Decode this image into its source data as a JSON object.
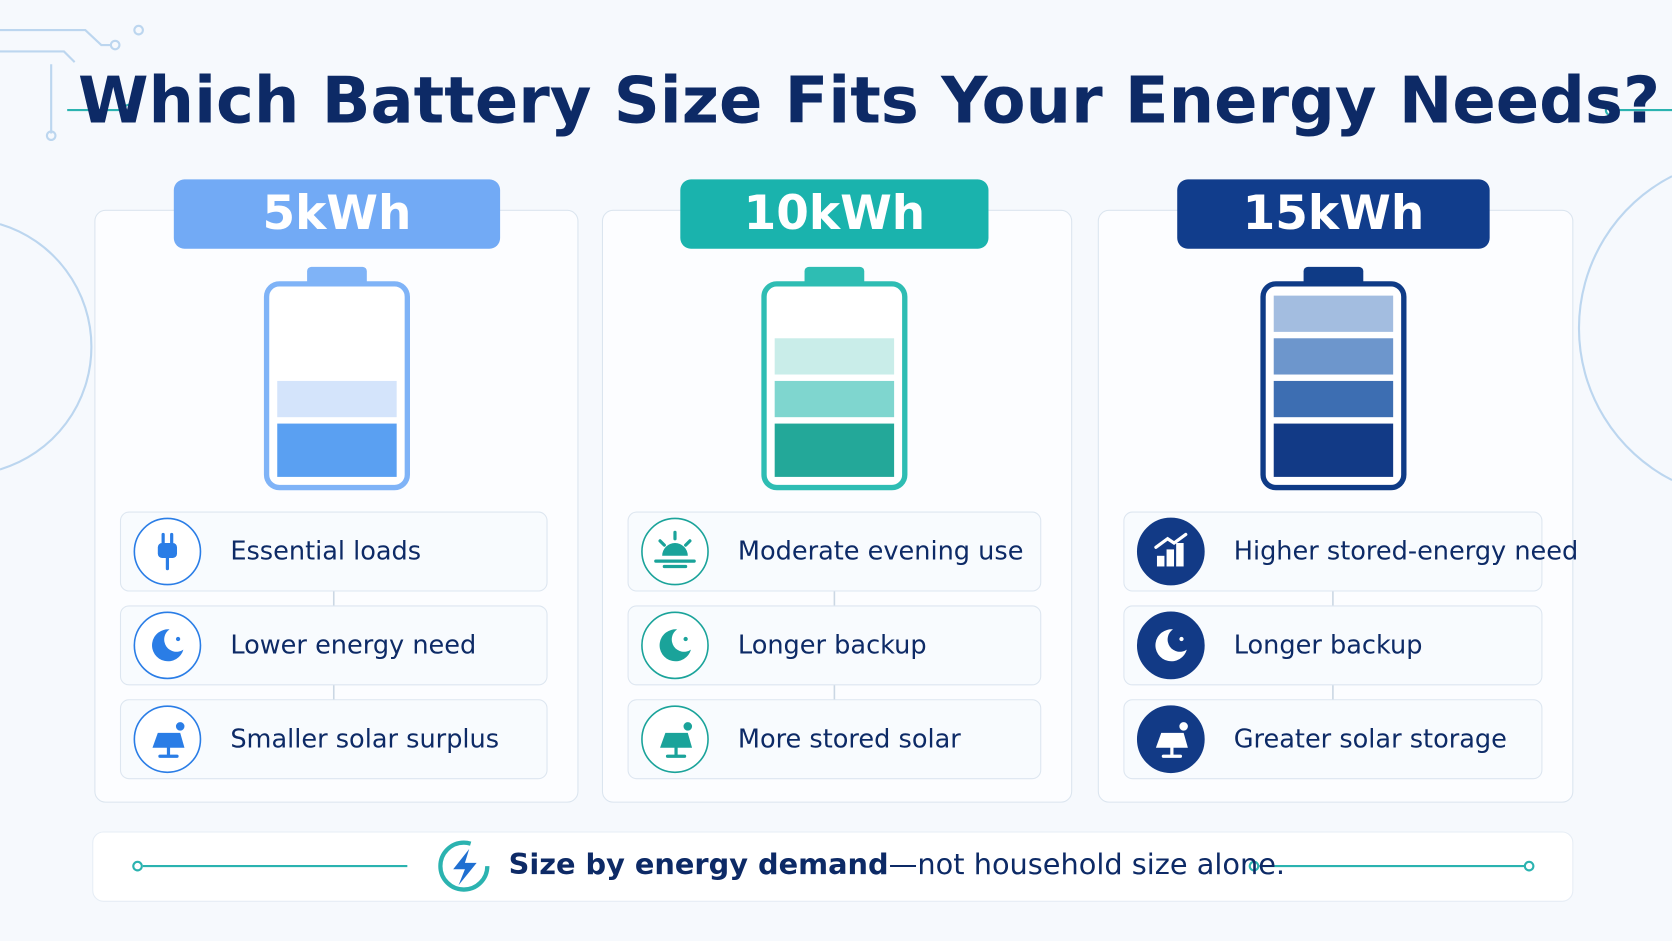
{
  "title": "Which Battery Size Fits Your Energy Needs?",
  "cards": [
    {
      "size": "5kWh",
      "features": [
        "Essential loads",
        "Lower energy need",
        "Smaller solar surplus"
      ]
    },
    {
      "size": "10kWh",
      "features": [
        "Moderate evening use",
        "Longer backup",
        "More stored solar"
      ]
    },
    {
      "size": "15kWh",
      "features": [
        "Higher stored-energy need",
        "Longer backup",
        "Greater solar storage"
      ]
    }
  ],
  "footer": {
    "emphasis": "Size by energy demand",
    "text": "—not household size alone."
  }
}
